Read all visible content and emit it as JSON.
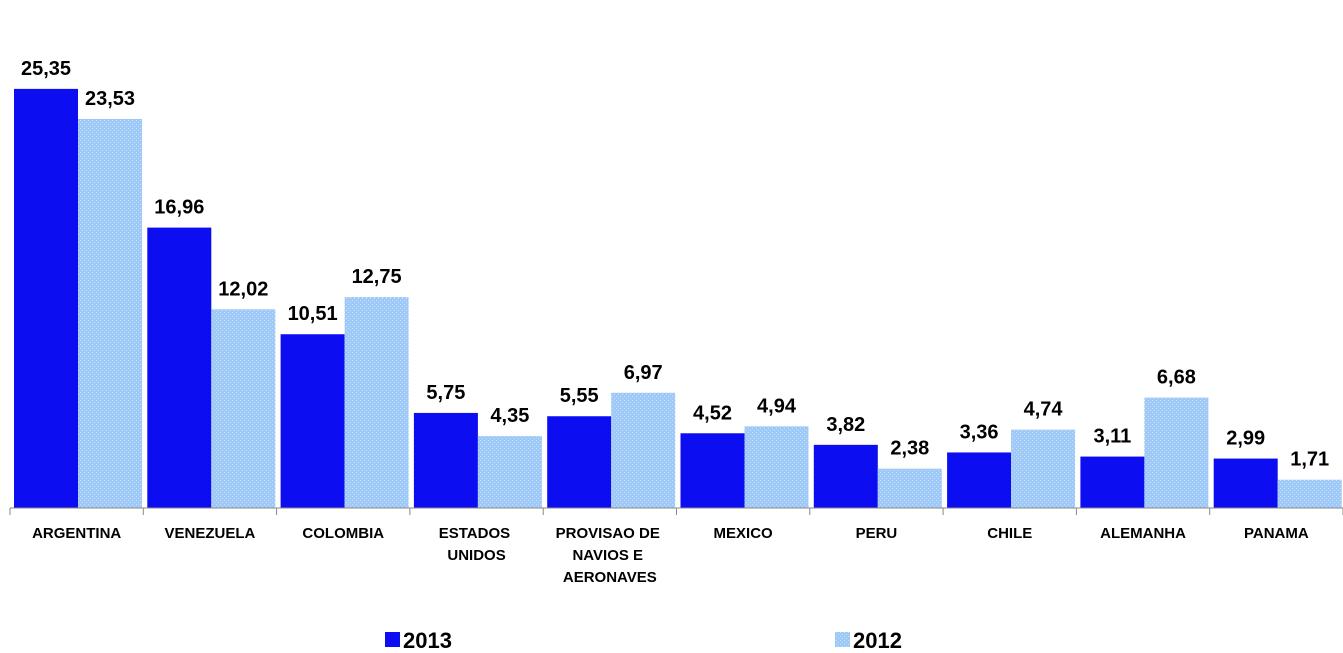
{
  "chart_data": {
    "type": "bar",
    "categories": [
      "ARGENTINA",
      "VENEZUELA",
      "COLOMBIA",
      "ESTADOS UNIDOS",
      "PROVISAO DE NAVIOS E AERONAVES",
      "MEXICO",
      "PERU",
      "CHILE",
      "ALEMANHA",
      "PANAMA"
    ],
    "series": [
      {
        "name": "2013",
        "color": "#0d0df2",
        "values": [
          25.35,
          16.96,
          10.51,
          5.75,
          5.55,
          4.52,
          3.82,
          3.36,
          3.11,
          2.99
        ],
        "value_labels": [
          "25,35",
          "16,96",
          "10,51",
          "5,75",
          "5,55",
          "4,52",
          "3,82",
          "3,36",
          "3,11",
          "2,99"
        ]
      },
      {
        "name": "2012",
        "color": "#9ec9f7",
        "values": [
          23.53,
          12.02,
          12.75,
          4.35,
          6.97,
          4.94,
          2.38,
          4.74,
          6.68,
          1.71
        ],
        "value_labels": [
          "23,53",
          "12,02",
          "12,75",
          "4,35",
          "6,97",
          "4,94",
          "2,38",
          "4,74",
          "6,68",
          "1,71"
        ]
      }
    ],
    "ylim": [
      0,
      30
    ],
    "legend": "bottom"
  }
}
